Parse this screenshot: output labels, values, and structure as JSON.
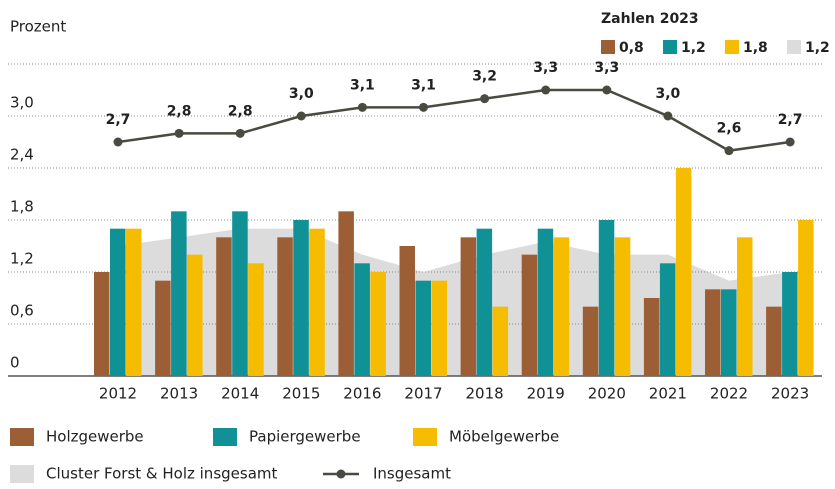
{
  "chart_data": {
    "type": "bar-area-line",
    "y_label": "Prozent",
    "legend_title": "Zahlen 2023",
    "categories": [
      "2012",
      "2013",
      "2014",
      "2015",
      "2016",
      "2017",
      "2018",
      "2019",
      "2020",
      "2021",
      "2022",
      "2023"
    ],
    "ylim": [
      0,
      3.6
    ],
    "yticks": [
      {
        "value": 0,
        "label": "0"
      },
      {
        "value": 0.6,
        "label": "0,6"
      },
      {
        "value": 1.2,
        "label": "1,2"
      },
      {
        "value": 1.8,
        "label": "1,8"
      },
      {
        "value": 2.4,
        "label": "2,4"
      },
      {
        "value": 3.0,
        "label": "3,0"
      }
    ],
    "grid": true,
    "series": [
      {
        "name": "Holzgewerbe",
        "kind": "bar",
        "color": "#9c5f35",
        "latest_label": "0,8",
        "values": [
          1.2,
          1.1,
          1.6,
          1.6,
          1.9,
          1.5,
          1.6,
          1.4,
          0.8,
          0.9,
          1.0,
          0.8
        ]
      },
      {
        "name": "Papiergewerbe",
        "kind": "bar",
        "color": "#0f9196",
        "latest_label": "1,2",
        "values": [
          1.7,
          1.9,
          1.9,
          1.8,
          1.3,
          1.1,
          1.7,
          1.7,
          1.8,
          1.3,
          1.0,
          1.2
        ]
      },
      {
        "name": "Möbelgewerbe",
        "kind": "bar",
        "color": "#f6bc00",
        "latest_label": "1,8",
        "values": [
          1.7,
          1.4,
          1.3,
          1.7,
          1.2,
          1.1,
          0.8,
          1.6,
          1.6,
          2.4,
          1.6,
          1.8
        ]
      },
      {
        "name": "Cluster Forst & Holz insgesamt",
        "kind": "area",
        "color": "#dcdcdc",
        "latest_label": "1,2",
        "values": [
          1.5,
          1.6,
          1.7,
          1.7,
          1.4,
          1.2,
          1.4,
          1.55,
          1.4,
          1.4,
          1.1,
          1.2
        ]
      },
      {
        "name": "Insgesamt",
        "kind": "line",
        "color": "#4a4a40",
        "values": [
          2.7,
          2.8,
          2.8,
          3.0,
          3.1,
          3.1,
          3.2,
          3.3,
          3.3,
          3.0,
          2.6,
          2.7
        ],
        "value_labels": [
          "2,7",
          "2,8",
          "2,8",
          "3,0",
          "3,1",
          "3,1",
          "3,2",
          "3,3",
          "3,3",
          "3,0",
          "2,6",
          "2,7"
        ]
      }
    ]
  }
}
